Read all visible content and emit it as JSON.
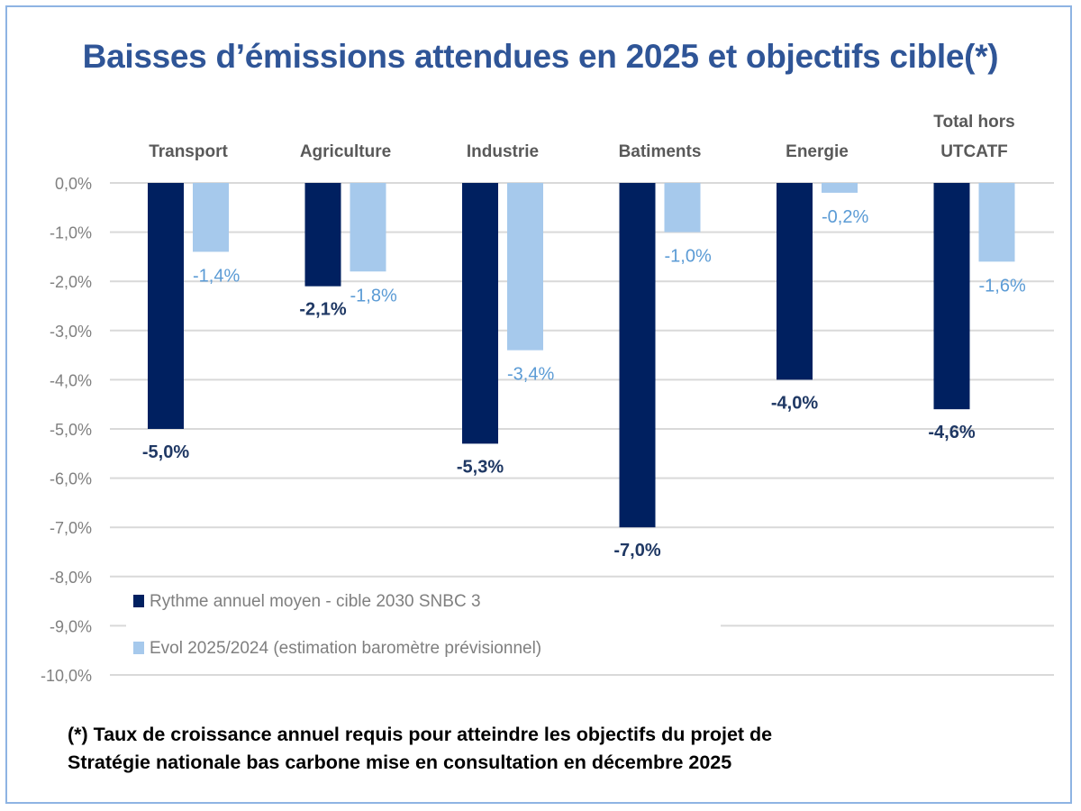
{
  "title": "Baisses d’émissions attendues en 2025 et objectifs cible(*)",
  "footnote": {
    "line1": "(*) Taux de croissance annuel requis pour atteindre les objectifs du projet de",
    "line2": "Stratégie nationale bas carbone mise en consultation en décembre 2025"
  },
  "chart_data": {
    "type": "bar",
    "categories": [
      [
        "Transport"
      ],
      [
        "Agriculture"
      ],
      [
        "Industrie"
      ],
      [
        "Batiments"
      ],
      [
        "Energie"
      ],
      [
        "Total hors",
        "UTCATF"
      ]
    ],
    "series": [
      {
        "name": "Rythme annuel moyen - cible 2030 SNBC 3",
        "color": "#002060",
        "label_color": "#1F3864",
        "values": [
          -5.0,
          -2.1,
          -5.3,
          -7.0,
          -4.0,
          -4.6
        ],
        "labels": [
          "-5,0%",
          "-2,1%",
          "-5,3%",
          "-7,0%",
          "-4,0%",
          "-4,6%"
        ]
      },
      {
        "name": "Evol 2025/2024 (estimation baromètre prévisionnel)",
        "color": "#A6C9EC",
        "label_color": "#5B9BD5",
        "values": [
          -1.4,
          -1.8,
          -3.4,
          -1.0,
          -0.2,
          -1.6
        ],
        "labels": [
          "-1,4%",
          "-1,8%",
          "-3,4%",
          "-1,0%",
          "-0,2%",
          "-1,6%"
        ]
      }
    ],
    "ylim": [
      -10,
      0
    ],
    "yticks": [
      "0,0%",
      "-1,0%",
      "-2,0%",
      "-3,0%",
      "-4,0%",
      "-5,0%",
      "-6,0%",
      "-7,0%",
      "-8,0%",
      "-9,0%",
      "-10,0%"
    ],
    "grid": true,
    "category_axis_position": "top",
    "legend_placement": "bottom-left"
  }
}
